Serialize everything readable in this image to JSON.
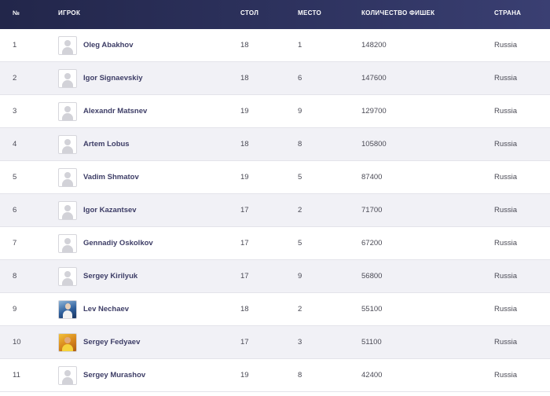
{
  "headers": {
    "num": "№",
    "player": "ИГРОК",
    "table": "СТОЛ",
    "place": "МЕСТО",
    "chips": "КОЛИЧЕСТВО ФИШЕК",
    "country": "СТРАНА"
  },
  "rows": [
    {
      "num": "1",
      "name": "Oleg Abakhov",
      "table": "18",
      "place": "1",
      "chips": "148200",
      "country": "Russia",
      "avatar": "avatar-placeholder-icon"
    },
    {
      "num": "2",
      "name": "Igor Signaevskiy",
      "table": "18",
      "place": "6",
      "chips": "147600",
      "country": "Russia",
      "avatar": "avatar-placeholder-icon"
    },
    {
      "num": "3",
      "name": "Alexandr Matsnev",
      "table": "19",
      "place": "9",
      "chips": "129700",
      "country": "Russia",
      "avatar": "avatar-placeholder-icon"
    },
    {
      "num": "4",
      "name": "Artem Lobus",
      "table": "18",
      "place": "8",
      "chips": "105800",
      "country": "Russia",
      "avatar": "avatar-placeholder-icon"
    },
    {
      "num": "5",
      "name": "Vadim Shmatov",
      "table": "19",
      "place": "5",
      "chips": "87400",
      "country": "Russia",
      "avatar": "avatar-placeholder-icon"
    },
    {
      "num": "6",
      "name": "Igor Kazantsev",
      "table": "17",
      "place": "2",
      "chips": "71700",
      "country": "Russia",
      "avatar": "avatar-placeholder-icon"
    },
    {
      "num": "7",
      "name": "Gennadiy Oskolkov",
      "table": "17",
      "place": "5",
      "chips": "67200",
      "country": "Russia",
      "avatar": "avatar-placeholder-icon"
    },
    {
      "num": "8",
      "name": "Sergey Kirilyuk",
      "table": "17",
      "place": "9",
      "chips": "56800",
      "country": "Russia",
      "avatar": "avatar-placeholder-icon"
    },
    {
      "num": "9",
      "name": "Lev Nechaev",
      "table": "18",
      "place": "2",
      "chips": "55100",
      "country": "Russia",
      "avatar": "avatar-photo"
    },
    {
      "num": "10",
      "name": "Sergey Fedyaev",
      "table": "17",
      "place": "3",
      "chips": "51100",
      "country": "Russia",
      "avatar": "avatar-photo"
    },
    {
      "num": "11",
      "name": "Sergey Murashov",
      "table": "19",
      "place": "8",
      "chips": "42400",
      "country": "Russia",
      "avatar": "avatar-placeholder-icon"
    }
  ],
  "colors": {
    "header_bg": "#2f3461",
    "row_alt_bg": "#f1f1f6",
    "name_text": "#3d3d66"
  }
}
